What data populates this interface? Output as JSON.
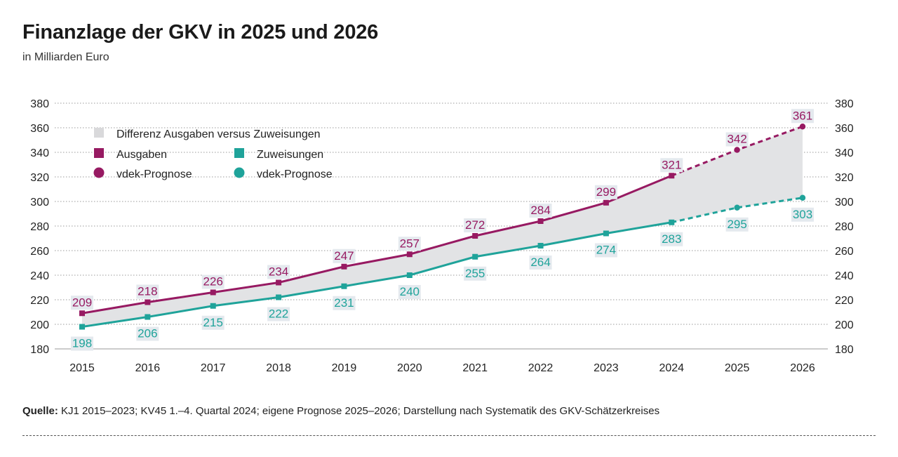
{
  "header": {
    "title": "Finanzlage der GKV in 2025 und 2026",
    "subtitle": "in Milliarden Euro"
  },
  "footer": {
    "source_label": "Quelle:",
    "source_text": "KJ1 2015–2023; KV45 1.–4. Quartal 2024; eigene Prognose 2025–2026; Darstellung nach Systematik des GKV-Schätzerkreises"
  },
  "colors": {
    "ausgaben": "#971a62",
    "zuweisungen": "#1fa39a",
    "fill": "#e2e3e5",
    "grid": "#9a9a9a",
    "label_bg": "#e4e9ee"
  },
  "legend": {
    "diff": "Differenz Ausgaben versus Zuweisungen",
    "ausgaben": "Ausgaben",
    "zuweisungen": "Zuweisungen",
    "prognose_a": "vdek-Prognose",
    "prognose_z": "vdek-Prognose"
  },
  "chart_data": {
    "type": "line",
    "title": "Finanzlage der GKV in 2025 und 2026",
    "ylabel": "in Milliarden Euro",
    "categories": [
      "2015",
      "2016",
      "2017",
      "2018",
      "2019",
      "2020",
      "2021",
      "2022",
      "2023",
      "2024",
      "2025",
      "2026"
    ],
    "ylim": [
      180,
      380
    ],
    "yticks": [
      180,
      200,
      220,
      240,
      260,
      280,
      300,
      320,
      340,
      360,
      380
    ],
    "forecast_from": "2025",
    "series": [
      {
        "name": "Ausgaben",
        "values": [
          209,
          218,
          226,
          234,
          247,
          257,
          272,
          284,
          299,
          321,
          342,
          361
        ]
      },
      {
        "name": "Zuweisungen",
        "values": [
          198,
          206,
          215,
          222,
          231,
          240,
          255,
          264,
          274,
          283,
          295,
          303
        ]
      }
    ],
    "area": "Differenz Ausgaben versus Zuweisungen"
  }
}
